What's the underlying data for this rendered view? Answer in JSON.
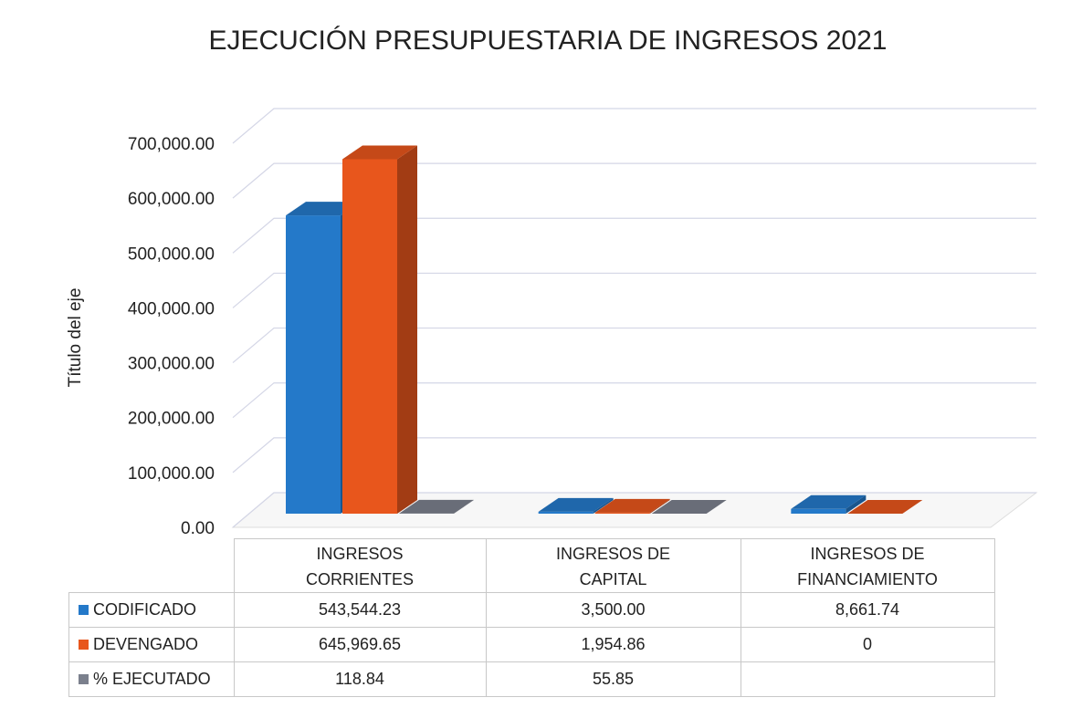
{
  "chart_data": {
    "type": "bar3d",
    "title": "EJECUCIÓN PRESUPUESTARIA DE INGRESOS 2021",
    "y_label": "Título del eje",
    "categories": [
      "INGRESOS CORRIENTES",
      "INGRESOS DE CAPITAL",
      "INGRESOS DE FINANCIAMIENTO"
    ],
    "series": [
      {
        "name": "CODIFICADO",
        "color": "#2479c9",
        "values": [
          543544.23,
          3500,
          8661.74
        ],
        "value_labels": [
          "543,544.23",
          "3,500.00",
          "8,661.74"
        ]
      },
      {
        "name": "DEVENGADO",
        "color": "#e8561c",
        "values": [
          645969.65,
          1954.86,
          0
        ],
        "value_labels": [
          "645,969.65",
          "1,954.86",
          "0"
        ]
      },
      {
        "name": "% EJECUTADO",
        "color": "#7b808d",
        "values": [
          118.84,
          55.85,
          null
        ],
        "value_labels": [
          "118.84",
          "55.85",
          null
        ]
      }
    ],
    "ylim": [
      0,
      700000
    ],
    "yticks": [
      {
        "value": 0,
        "label": "0.00"
      },
      {
        "value": 100000,
        "label": "100,000.00"
      },
      {
        "value": 200000,
        "label": "200,000.00"
      },
      {
        "value": 300000,
        "label": "300,000.00"
      },
      {
        "value": 400000,
        "label": "400,000.00"
      },
      {
        "value": 500000,
        "label": "500,000.00"
      },
      {
        "value": 600000,
        "label": "600,000.00"
      },
      {
        "value": 700000,
        "label": "700,000.00"
      }
    ],
    "grid": true
  }
}
